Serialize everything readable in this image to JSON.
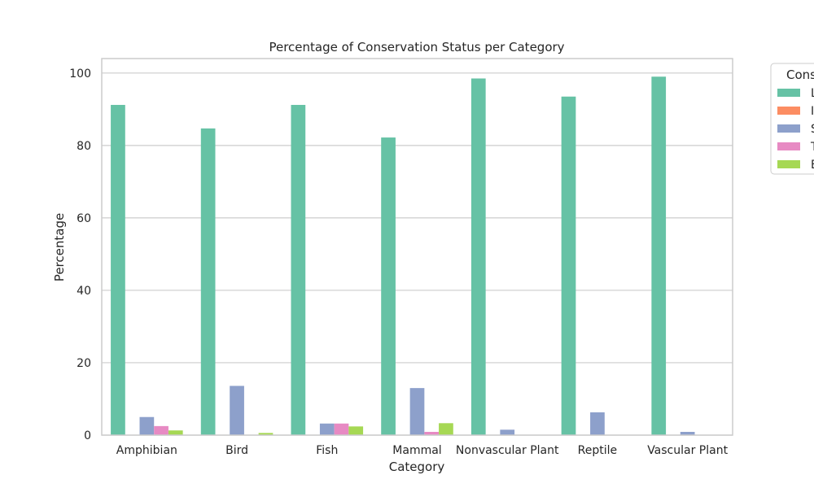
{
  "chart_data": {
    "type": "bar",
    "title": "Percentage of Conservation Status per Category",
    "xlabel": "Category",
    "ylabel": "Percentage",
    "categories": [
      "Amphibian",
      "Bird",
      "Fish",
      "Mammal",
      "Nonvascular Plant",
      "Reptile",
      "Vascular Plant"
    ],
    "ylim": [
      0,
      104
    ],
    "yticks": [
      0,
      20,
      40,
      60,
      80,
      100
    ],
    "grid": true,
    "legend": {
      "title": "Cons",
      "placement": "upper-right-outside"
    },
    "series": [
      {
        "name": "L",
        "color": "#66c2a5",
        "values": [
          91.2,
          84.7,
          91.2,
          82.2,
          98.5,
          93.5,
          99.0
        ]
      },
      {
        "name": "I",
        "color": "#fc8d62",
        "values": [
          0.0,
          0.0,
          0.0,
          0.0,
          0.0,
          0.0,
          0.0
        ]
      },
      {
        "name": "S",
        "color": "#8da0cb",
        "values": [
          5.0,
          13.6,
          3.2,
          13.0,
          1.5,
          6.3,
          0.9
        ]
      },
      {
        "name": "T",
        "color": "#e78ac3",
        "values": [
          2.5,
          0.0,
          3.2,
          0.9,
          0.0,
          0.0,
          0.1
        ]
      },
      {
        "name": "E",
        "color": "#a6d854",
        "values": [
          1.3,
          0.6,
          2.4,
          3.3,
          0.0,
          0.0,
          0.0
        ]
      }
    ]
  }
}
